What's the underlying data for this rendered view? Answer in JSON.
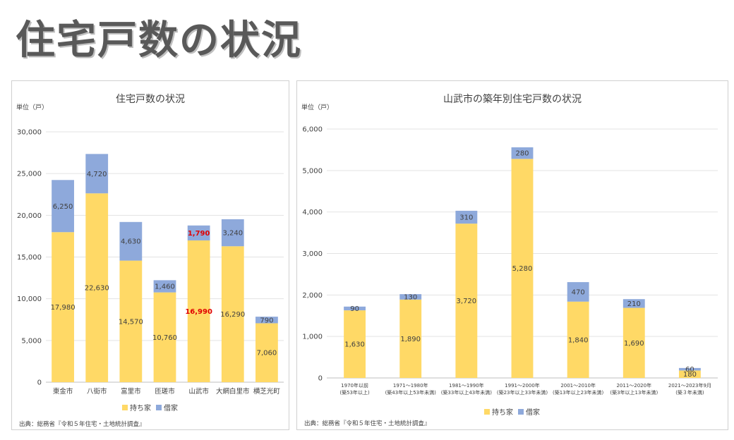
{
  "page": {
    "title": "住宅戸数の状況"
  },
  "chart_data": [
    {
      "type": "bar",
      "stacked": true,
      "title": "住宅戸数の状況",
      "unit_label": "単位（戸）",
      "ylim": [
        0,
        30000
      ],
      "yticks": [
        "0",
        "5,000",
        "10,000",
        "15,000",
        "20,000",
        "25,000",
        "30,000"
      ],
      "grid": true,
      "legend_position": "bottom",
      "categories": [
        "東金市",
        "八街市",
        "富里市",
        "匝瑳市",
        "山武市",
        "大網白里市",
        "横芝光町"
      ],
      "series": [
        {
          "name": "持ち家",
          "color": "#FFD966",
          "values": [
            17980,
            22630,
            14570,
            10760,
            16990,
            16290,
            7060
          ],
          "labels": [
            "17,980",
            "22,630",
            "14,570",
            "10,760",
            "16,990",
            "16,290",
            "7,060"
          ]
        },
        {
          "name": "借家",
          "color": "#8EA9DB",
          "values": [
            6250,
            4720,
            4630,
            1460,
            1790,
            3240,
            790
          ],
          "labels": [
            "6,250",
            "4,720",
            "4,630",
            "1,460",
            "1,790",
            "3,240",
            "790"
          ]
        }
      ],
      "highlight_category": "山武市",
      "highlight_color": "#E00000",
      "source": "出典：総務省『令和５年住宅・土地統計調査』"
    },
    {
      "type": "bar",
      "stacked": true,
      "title": "山武市の築年別住宅戸数の状況",
      "unit_label": "単位（戸）",
      "ylim": [
        0,
        6000
      ],
      "yticks": [
        "0",
        "1,000",
        "2,000",
        "3,000",
        "4,000",
        "5,000",
        "6,000"
      ],
      "grid": true,
      "legend_position": "bottom",
      "categories": [
        [
          "1970年以前",
          "(築53年以上)"
        ],
        [
          "1971～1980年",
          "(築43年以上53年未満)"
        ],
        [
          "1981～1990年",
          "(築33年以上43年未満)"
        ],
        [
          "1991～2000年",
          "(築23年以上33年未満)"
        ],
        [
          "2001～2010年",
          "(築13年以上23年未満)"
        ],
        [
          "2011～2020年",
          "(築3年以上13年未満)"
        ],
        [
          "2021～2023年9月",
          "(築３年未満)"
        ]
      ],
      "series": [
        {
          "name": "持ち家",
          "color": "#FFD966",
          "values": [
            1630,
            1890,
            3720,
            5280,
            1840,
            1690,
            180
          ],
          "labels": [
            "1,630",
            "1,890",
            "3,720",
            "5,280",
            "1,840",
            "1,690",
            "180"
          ]
        },
        {
          "name": "借家",
          "color": "#8EA9DB",
          "values": [
            90,
            130,
            310,
            280,
            470,
            210,
            60
          ],
          "labels": [
            "90",
            "130",
            "310",
            "280",
            "470",
            "210",
            "60"
          ]
        }
      ],
      "source": "出典：総務省『令和５年住宅・土地統計調査』"
    }
  ]
}
